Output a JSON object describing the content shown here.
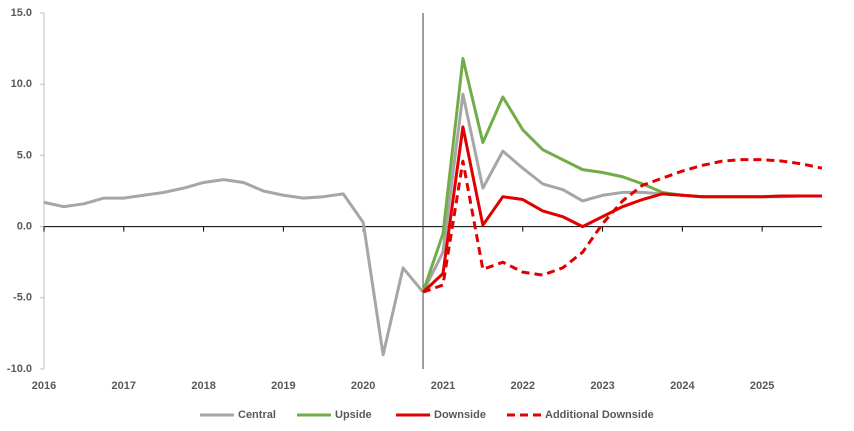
{
  "chart_data": {
    "type": "line",
    "x": [
      2016,
      2016.25,
      2016.5,
      2016.75,
      2017,
      2017.25,
      2017.5,
      2017.75,
      2018,
      2018.25,
      2018.5,
      2018.75,
      2019,
      2019.25,
      2019.5,
      2019.75,
      2020,
      2020.25,
      2020.5,
      2020.75,
      2021,
      2021.25,
      2021.5,
      2021.75,
      2022,
      2022.25,
      2022.5,
      2022.75,
      2023,
      2023.25,
      2023.5,
      2023.75,
      2024,
      2024.25,
      2024.5,
      2024.75,
      2025,
      2025.25,
      2025.5,
      2025.75
    ],
    "series": [
      {
        "name": "Central",
        "color": "#a6a6a6",
        "dash": false,
        "values": [
          1.7,
          1.4,
          1.6,
          2.0,
          2.0,
          2.2,
          2.4,
          2.7,
          3.1,
          3.3,
          3.1,
          2.5,
          2.2,
          2.0,
          2.1,
          2.3,
          0.3,
          -9.0,
          -2.9,
          -4.6,
          -1.8,
          9.3,
          2.7,
          5.3,
          4.1,
          3.0,
          2.6,
          1.8,
          2.2,
          2.4,
          2.4,
          2.3,
          2.2,
          2.1,
          2.1,
          2.1,
          2.1,
          2.1,
          2.15,
          2.15
        ]
      },
      {
        "name": "Upside",
        "color": "#70ad47",
        "dash": false,
        "values": [
          null,
          null,
          null,
          null,
          null,
          null,
          null,
          null,
          null,
          null,
          null,
          null,
          null,
          null,
          null,
          null,
          null,
          null,
          null,
          -4.6,
          -0.5,
          11.8,
          5.9,
          9.1,
          6.8,
          5.4,
          4.7,
          4.0,
          3.8,
          3.5,
          3.0,
          2.4,
          2.2,
          2.1,
          2.1,
          2.1,
          2.1,
          2.15,
          2.15,
          2.15
        ]
      },
      {
        "name": "Downside",
        "color": "#e00000",
        "dash": false,
        "values": [
          null,
          null,
          null,
          null,
          null,
          null,
          null,
          null,
          null,
          null,
          null,
          null,
          null,
          null,
          null,
          null,
          null,
          null,
          null,
          -4.6,
          -3.3,
          7.0,
          0.1,
          2.1,
          1.9,
          1.1,
          0.7,
          0.0,
          0.7,
          1.4,
          1.9,
          2.3,
          2.2,
          2.1,
          2.1,
          2.1,
          2.1,
          2.15,
          2.15,
          2.15
        ]
      },
      {
        "name": "Additional Downside",
        "color": "#e00000",
        "dash": true,
        "values": [
          null,
          null,
          null,
          null,
          null,
          null,
          null,
          null,
          null,
          null,
          null,
          null,
          null,
          null,
          null,
          null,
          null,
          null,
          null,
          -4.6,
          -4.1,
          4.6,
          -3.0,
          -2.5,
          -3.2,
          -3.4,
          -2.9,
          -1.8,
          0.2,
          1.8,
          2.9,
          3.4,
          3.9,
          4.3,
          4.6,
          4.7,
          4.7,
          4.6,
          4.4,
          4.1
        ]
      }
    ],
    "xlim": [
      2016,
      2025.75
    ],
    "xticks": [
      2016,
      2017,
      2018,
      2019,
      2020,
      2021,
      2022,
      2023,
      2024,
      2025
    ],
    "ylim": [
      -10,
      15
    ],
    "yticks": [
      {
        "value": -10,
        "label": "-10.0"
      },
      {
        "value": -5,
        "label": "-5.0"
      },
      {
        "value": 0,
        "label": "0.0"
      },
      {
        "value": 5,
        "label": "5.0"
      },
      {
        "value": 10,
        "label": "10.0"
      },
      {
        "value": 15,
        "label": "15.0"
      }
    ],
    "vline": 2020.75,
    "grid": false,
    "legend": "bottom"
  }
}
